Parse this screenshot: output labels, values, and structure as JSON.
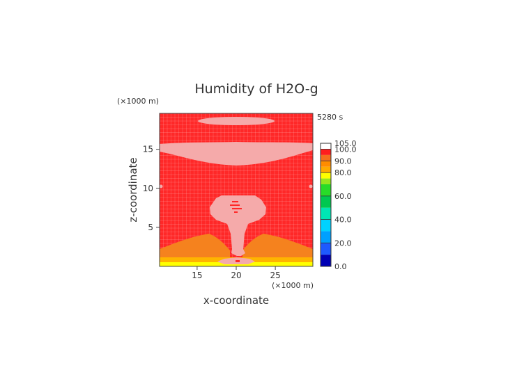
{
  "chart_data": {
    "type": "heatmap",
    "title": "Humidity of H2O-g",
    "time_label": "5280 s",
    "xlabel": "x-coordinate",
    "ylabel": "z-coordinate",
    "x_unit": "(×1000 m)",
    "y_unit": "(×1000 m)",
    "xlim": [
      10.2,
      29.8
    ],
    "ylim": [
      0,
      19.6
    ],
    "x_ticks": [
      15,
      20,
      25
    ],
    "y_ticks": [
      5,
      10,
      15
    ],
    "grid": true,
    "legend_position": "right",
    "colorbar": {
      "labels": [
        "0.0",
        "20.0",
        "40.0",
        "60.0",
        "80.0",
        "90.0",
        "100.0",
        "105.0"
      ],
      "label_values": [
        0,
        20,
        40,
        60,
        80,
        90,
        100,
        105
      ],
      "bands": [
        {
          "from": 0,
          "to": 10,
          "color": "#0000b4"
        },
        {
          "from": 10,
          "to": 20,
          "color": "#1e5aff"
        },
        {
          "from": 20,
          "to": 30,
          "color": "#00a0ff"
        },
        {
          "from": 30,
          "to": 40,
          "color": "#00d2ff"
        },
        {
          "from": 40,
          "to": 50,
          "color": "#00e6b4"
        },
        {
          "from": 50,
          "to": 60,
          "color": "#00c850"
        },
        {
          "from": 60,
          "to": 70,
          "color": "#28dc28"
        },
        {
          "from": 70,
          "to": 75,
          "color": "#96e61e"
        },
        {
          "from": 75,
          "to": 80,
          "color": "#ffff00"
        },
        {
          "from": 80,
          "to": 85,
          "color": "#ffaa00"
        },
        {
          "from": 85,
          "to": 90,
          "color": "#ff8c00"
        },
        {
          "from": 90,
          "to": 95,
          "color": "#f56e1e"
        },
        {
          "from": 95,
          "to": 100,
          "color": "#ff1e1e"
        },
        {
          "from": 100,
          "to": 105,
          "color": "#ffffff"
        }
      ]
    },
    "colors": {
      "background": "#ff2828",
      "supersaturated": "#f5aaaa",
      "band_80_90": "#f5821e",
      "band_75_80": "#ffb400",
      "band_yellow": "#ffff00"
    }
  }
}
